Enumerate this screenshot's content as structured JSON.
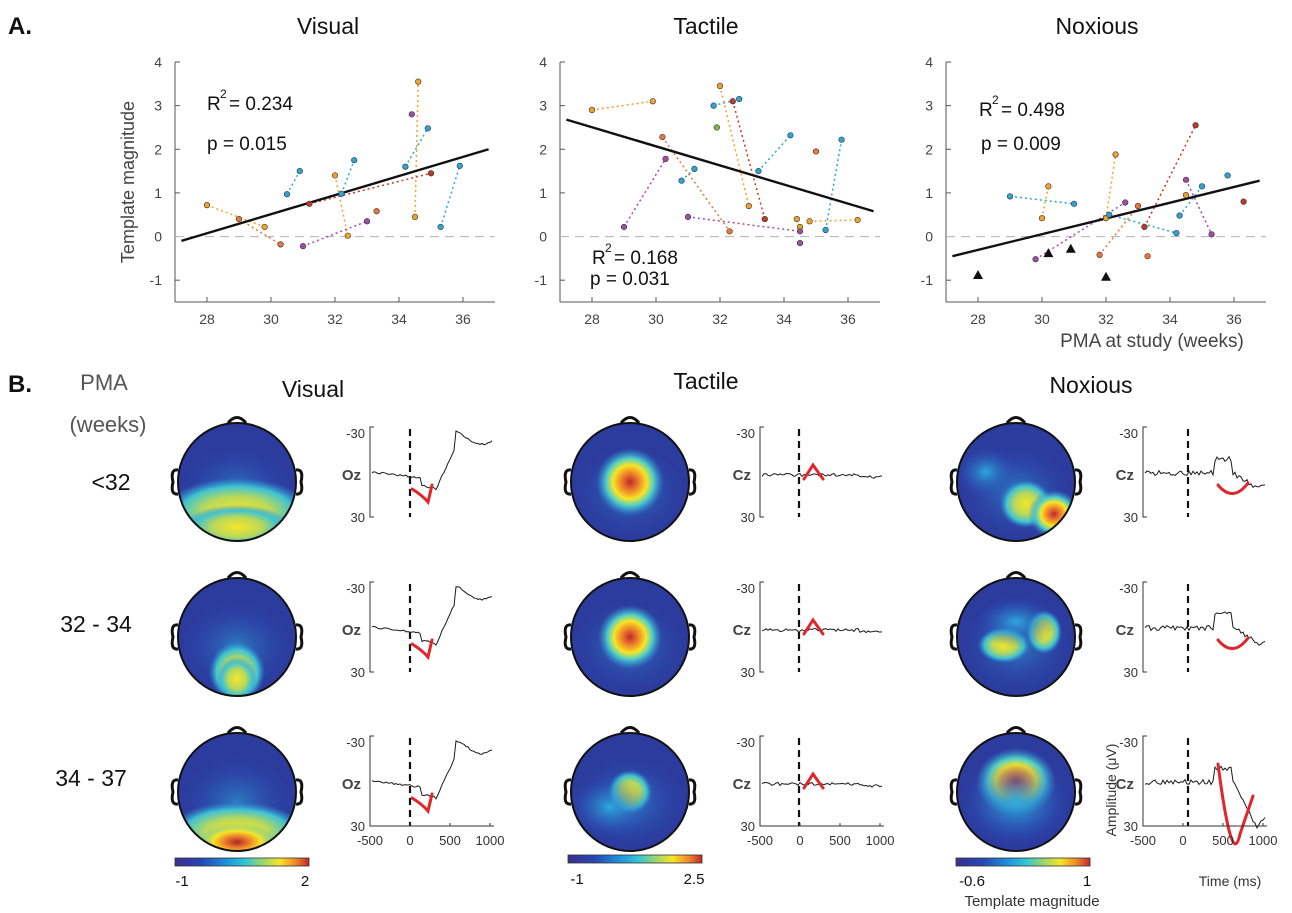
{
  "panel_labels": {
    "a": "A.",
    "b": "B."
  },
  "section_b": {
    "pma_header_line1": "PMA",
    "pma_header_line2": "(weeks)",
    "row_labels": [
      "<32",
      "32 - 34",
      "34 - 37"
    ],
    "columns": [
      {
        "title": "Visual",
        "channel": "Oz",
        "colorbar": {
          "min_label": "-1",
          "max_label": "2"
        }
      },
      {
        "title": "Tactile",
        "channel": "Cz",
        "colorbar": {
          "min_label": "-1",
          "max_label": "2.5"
        }
      },
      {
        "title": "Noxious",
        "channel": "Cz",
        "colorbar": {
          "min_label": "-0.6",
          "max_label": "1"
        }
      }
    ],
    "erp_y_ticks": [
      "-30",
      "30"
    ],
    "erp_x_ticks": [
      "-500",
      "0",
      "500",
      "1000"
    ],
    "erp_ylabel": "Amplitude (μV)",
    "erp_xlabel": "Time (ms)",
    "colorbar_caption": "Template magnitude",
    "colors": {
      "template_fit": "#e0262b",
      "trace": "#1a1a1a"
    }
  },
  "chart_data": [
    {
      "type": "scatter",
      "title": "Visual",
      "ylabel": "Template magnitude",
      "xlabel": "",
      "xlim": [
        27,
        37
      ],
      "ylim": [
        -1.5,
        4
      ],
      "x_ticks": [
        28,
        30,
        32,
        34,
        36
      ],
      "y_ticks": [
        -1,
        0,
        1,
        2,
        3,
        4
      ],
      "annotations": [
        "R",
        "2",
        "= 0.234",
        "p = 0.015"
      ],
      "regression": {
        "x": [
          27.2,
          36.8
        ],
        "y": [
          -0.1,
          2.0
        ]
      },
      "points": [
        {
          "x": 28.0,
          "y": 0.72,
          "c": "#f0a22a"
        },
        {
          "x": 29.0,
          "y": 0.4,
          "c": "#e9763a"
        },
        {
          "x": 29.8,
          "y": 0.22,
          "c": "#f0a22a"
        },
        {
          "x": 30.3,
          "y": -0.18,
          "c": "#e9763a"
        },
        {
          "x": 30.5,
          "y": 0.97,
          "c": "#2ea4d6"
        },
        {
          "x": 30.9,
          "y": 1.5,
          "c": "#2ea4d6"
        },
        {
          "x": 31.0,
          "y": -0.22,
          "c": "#a44ba8"
        },
        {
          "x": 31.2,
          "y": 0.75,
          "c": "#c0392b"
        },
        {
          "x": 32.0,
          "y": 1.4,
          "c": "#f0a22a"
        },
        {
          "x": 32.2,
          "y": 0.98,
          "c": "#2ea4d6"
        },
        {
          "x": 32.4,
          "y": 0.02,
          "c": "#f0a22a"
        },
        {
          "x": 32.6,
          "y": 1.75,
          "c": "#2ea4d6"
        },
        {
          "x": 33.0,
          "y": 0.35,
          "c": "#a44ba8"
        },
        {
          "x": 33.3,
          "y": 0.58,
          "c": "#e9763a"
        },
        {
          "x": 34.2,
          "y": 1.6,
          "c": "#2ea4d6"
        },
        {
          "x": 34.4,
          "y": 2.8,
          "c": "#a44ba8"
        },
        {
          "x": 34.5,
          "y": 0.45,
          "c": "#f0a22a"
        },
        {
          "x": 34.6,
          "y": 3.55,
          "c": "#f0a22a"
        },
        {
          "x": 34.9,
          "y": 2.48,
          "c": "#2ea4d6"
        },
        {
          "x": 35.0,
          "y": 1.45,
          "c": "#c0392b"
        },
        {
          "x": 35.3,
          "y": 0.22,
          "c": "#2ea4d6"
        },
        {
          "x": 35.9,
          "y": 1.62,
          "c": "#2ea4d6"
        }
      ]
    },
    {
      "type": "scatter",
      "title": "Tactile",
      "xlabel": "",
      "xlim": [
        27,
        37
      ],
      "ylim": [
        -1.5,
        4
      ],
      "x_ticks": [
        28,
        30,
        32,
        34,
        36
      ],
      "y_ticks": [
        -1,
        0,
        1,
        2,
        3,
        4
      ],
      "annotations": [
        "R",
        "2",
        "= 0.168",
        "p = 0.031"
      ],
      "regression": {
        "x": [
          27.2,
          36.8
        ],
        "y": [
          2.68,
          0.58
        ]
      },
      "points": [
        {
          "x": 28.0,
          "y": 2.9,
          "c": "#f0a22a"
        },
        {
          "x": 29.0,
          "y": 0.22,
          "c": "#a44ba8"
        },
        {
          "x": 29.9,
          "y": 3.1,
          "c": "#f0a22a"
        },
        {
          "x": 30.2,
          "y": 2.28,
          "c": "#e9763a"
        },
        {
          "x": 30.3,
          "y": 1.78,
          "c": "#a44ba8"
        },
        {
          "x": 30.8,
          "y": 1.28,
          "c": "#2ea4d6"
        },
        {
          "x": 31.0,
          "y": 0.45,
          "c": "#a44ba8"
        },
        {
          "x": 31.2,
          "y": 1.55,
          "c": "#2ea4d6"
        },
        {
          "x": 31.8,
          "y": 3.0,
          "c": "#2ea4d6"
        },
        {
          "x": 31.9,
          "y": 2.5,
          "c": "#7fba3f"
        },
        {
          "x": 32.0,
          "y": 3.45,
          "c": "#f0a22a"
        },
        {
          "x": 32.3,
          "y": 0.12,
          "c": "#e9763a"
        },
        {
          "x": 32.4,
          "y": 3.1,
          "c": "#c0392b"
        },
        {
          "x": 32.6,
          "y": 3.15,
          "c": "#2ea4d6"
        },
        {
          "x": 32.9,
          "y": 0.7,
          "c": "#f0a22a"
        },
        {
          "x": 33.2,
          "y": 1.5,
          "c": "#2ea4d6"
        },
        {
          "x": 33.4,
          "y": 0.4,
          "c": "#c0392b"
        },
        {
          "x": 34.2,
          "y": 2.32,
          "c": "#2ea4d6"
        },
        {
          "x": 34.4,
          "y": 0.4,
          "c": "#f0a22a"
        },
        {
          "x": 34.5,
          "y": 0.22,
          "c": "#f0a22a"
        },
        {
          "x": 34.5,
          "y": 0.12,
          "c": "#a44ba8"
        },
        {
          "x": 34.5,
          "y": -0.15,
          "c": "#a44ba8"
        },
        {
          "x": 34.8,
          "y": 0.35,
          "c": "#f0a22a"
        },
        {
          "x": 35.0,
          "y": 1.95,
          "c": "#e9763a"
        },
        {
          "x": 35.3,
          "y": 0.15,
          "c": "#2ea4d6"
        },
        {
          "x": 35.8,
          "y": 2.22,
          "c": "#2ea4d6"
        },
        {
          "x": 36.3,
          "y": 0.38,
          "c": "#f0a22a"
        }
      ]
    },
    {
      "type": "scatter",
      "title": "Noxious",
      "xlabel": "PMA at study (weeks)",
      "xlim": [
        27,
        37
      ],
      "ylim": [
        -1.5,
        4
      ],
      "x_ticks": [
        28,
        30,
        32,
        34,
        36
      ],
      "y_ticks": [
        -1,
        0,
        1,
        2,
        3,
        4
      ],
      "annotations": [
        "R",
        "2",
        "= 0.498",
        "p = 0.009"
      ],
      "regression": {
        "x": [
          27.2,
          36.8
        ],
        "y": [
          -0.45,
          1.28
        ]
      },
      "points": [
        {
          "x": 29.0,
          "y": 0.92,
          "c": "#2ea4d6"
        },
        {
          "x": 29.8,
          "y": -0.52,
          "c": "#a44ba8"
        },
        {
          "x": 30.0,
          "y": 0.42,
          "c": "#f0a22a"
        },
        {
          "x": 30.2,
          "y": 1.15,
          "c": "#f0a22a"
        },
        {
          "x": 31.0,
          "y": 0.75,
          "c": "#2ea4d6"
        },
        {
          "x": 31.8,
          "y": -0.42,
          "c": "#e9763a"
        },
        {
          "x": 32.0,
          "y": 0.42,
          "c": "#f0a22a"
        },
        {
          "x": 32.1,
          "y": 0.5,
          "c": "#2ea4d6"
        },
        {
          "x": 32.3,
          "y": 1.88,
          "c": "#f0a22a"
        },
        {
          "x": 32.6,
          "y": 0.78,
          "c": "#a44ba8"
        },
        {
          "x": 33.0,
          "y": 0.7,
          "c": "#e9763a"
        },
        {
          "x": 33.2,
          "y": 0.22,
          "c": "#c0392b"
        },
        {
          "x": 33.3,
          "y": -0.45,
          "c": "#e9763a"
        },
        {
          "x": 34.2,
          "y": 0.08,
          "c": "#2ea4d6"
        },
        {
          "x": 34.3,
          "y": 0.48,
          "c": "#2ea4d6"
        },
        {
          "x": 34.5,
          "y": 0.95,
          "c": "#f0a22a"
        },
        {
          "x": 34.5,
          "y": 1.3,
          "c": "#a44ba8"
        },
        {
          "x": 34.8,
          "y": 2.55,
          "c": "#c0392b"
        },
        {
          "x": 35.0,
          "y": 1.15,
          "c": "#2ea4d6"
        },
        {
          "x": 35.3,
          "y": 0.05,
          "c": "#a44ba8"
        },
        {
          "x": 35.8,
          "y": 1.4,
          "c": "#2ea4d6"
        },
        {
          "x": 36.3,
          "y": 0.8,
          "c": "#c0392b"
        }
      ],
      "triangles": [
        {
          "x": 28.0,
          "y": -0.88
        },
        {
          "x": 30.2,
          "y": -0.38
        },
        {
          "x": 30.9,
          "y": -0.28
        },
        {
          "x": 32.0,
          "y": -0.92
        }
      ]
    }
  ]
}
